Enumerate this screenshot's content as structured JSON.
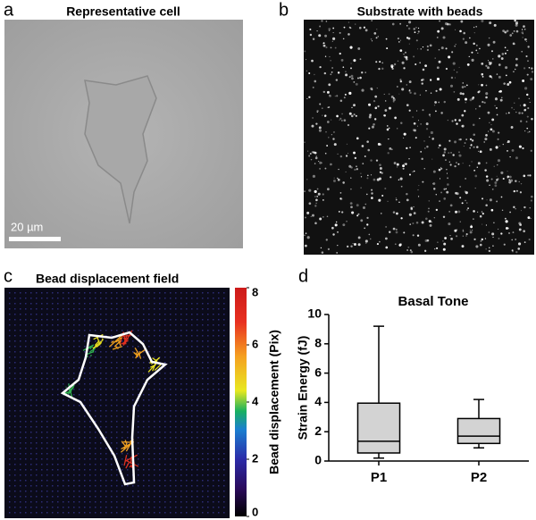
{
  "panels": {
    "a": {
      "label": "a",
      "title": "Representative cell",
      "scale_bar": "20 µm"
    },
    "b": {
      "label": "b",
      "title": "Substrate with beads"
    },
    "c": {
      "label": "c",
      "title": "Bead displacement field",
      "colorbar": {
        "label": "Bead displacement (Pix)",
        "lim": [
          0,
          8
        ],
        "ticks": [
          0,
          2,
          4,
          6,
          8
        ]
      }
    },
    "d": {
      "label": "d"
    }
  },
  "chart_data": {
    "type": "box",
    "title": "Basal Tone",
    "y_label": "Strain Energy (fJ)",
    "categories": [
      "P1",
      "P2"
    ],
    "color": "#d3d3d3",
    "boxes": [
      {
        "min": 0.2,
        "q1": 0.55,
        "median": 1.35,
        "q3": 3.95,
        "max": 9.2
      },
      {
        "min": 0.9,
        "q1": 1.2,
        "median": 1.7,
        "q3": 2.9,
        "max": 4.2
      }
    ],
    "ylim": [
      0,
      10
    ],
    "yticks": [
      0,
      2,
      4,
      6,
      8,
      10
    ]
  }
}
